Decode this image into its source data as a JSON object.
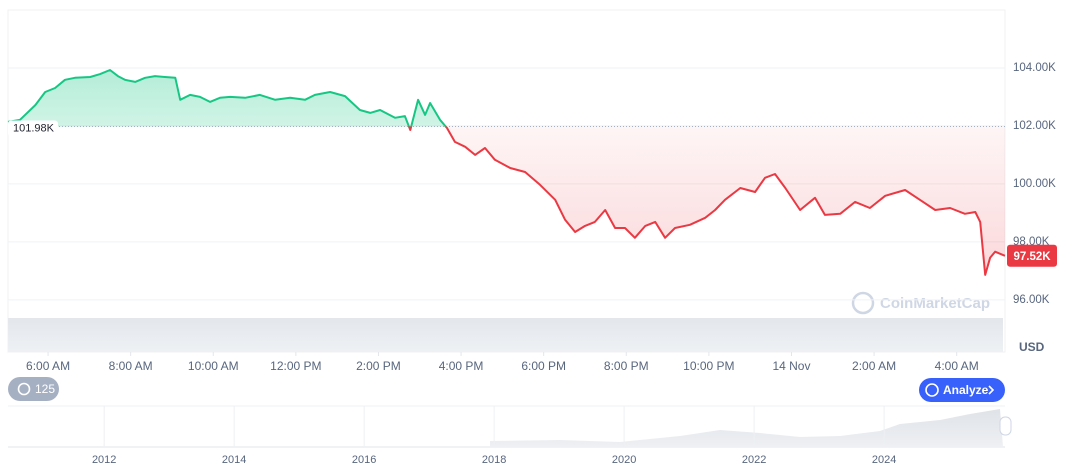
{
  "chart_data": {
    "type": "line",
    "x": [
      5.03,
      5.32,
      5.69,
      5.93,
      6.17,
      6.41,
      6.65,
      7.02,
      7.26,
      7.5,
      7.69,
      7.86,
      8.11,
      8.35,
      8.59,
      8.83,
      9.08,
      9.2,
      9.44,
      9.68,
      9.92,
      10.16,
      10.41,
      10.77,
      11.13,
      11.5,
      11.86,
      12.22,
      12.46,
      12.83,
      13.19,
      13.55,
      13.8,
      14.04,
      14.4,
      14.64,
      14.77,
      14.96,
      15.13,
      15.25,
      15.49,
      15.66,
      15.85,
      16.1,
      16.34,
      16.58,
      16.82,
      17.19,
      17.55,
      17.91,
      18.28,
      18.52,
      18.76,
      19.0,
      19.24,
      19.49,
      19.73,
      19.97,
      20.21,
      20.46,
      20.7,
      20.94,
      21.18,
      21.54,
      21.91,
      22.15,
      22.39,
      22.76,
      23.12,
      23.36,
      23.6,
      23.85,
      24.21,
      24.57,
      24.81,
      25.18,
      25.54,
      25.9,
      26.27,
      26.75,
      27.11,
      27.48,
      27.84,
      28.2,
      28.45,
      28.57,
      28.69,
      28.81,
      28.93,
      29.17
    ],
    "series": [
      {
        "values": [
          102140,
          102210,
          102720,
          103170,
          103310,
          103590,
          103660,
          103690,
          103790,
          103930,
          103720,
          103590,
          103520,
          103660,
          103720,
          103690,
          103660,
          102900,
          103070,
          103000,
          102830,
          102970,
          103000,
          102970,
          103070,
          102900,
          102970,
          102900,
          103070,
          103170,
          103030,
          102550,
          102450,
          102550,
          102280,
          102340,
          101860,
          102900,
          102380,
          102790,
          102210,
          101930,
          101450,
          101280,
          101000,
          101240,
          100830,
          100550,
          100410,
          99970,
          99450,
          98760,
          98340,
          98550,
          98690,
          99100,
          98480,
          98480,
          98140,
          98550,
          98690,
          98140,
          98480,
          98590,
          98830,
          99100,
          99450,
          99860,
          99720,
          100210,
          100340,
          99860,
          99100,
          99520,
          98930,
          98970,
          99380,
          99170,
          99590,
          99790,
          99450,
          99100,
          99170,
          98970,
          99030,
          98690,
          96860,
          97450,
          97660,
          97520
        ],
        "color_above": "#16c784",
        "color_below": "#ea3943"
      }
    ],
    "xlim": [
      5.03,
      29.17
    ],
    "xticks": [
      {
        "value": 6,
        "label": "6:00 AM"
      },
      {
        "value": 8,
        "label": "8:00 AM"
      },
      {
        "value": 10,
        "label": "10:00 AM"
      },
      {
        "value": 12,
        "label": "12:00 PM"
      },
      {
        "value": 14,
        "label": "2:00 PM"
      },
      {
        "value": 16,
        "label": "4:00 PM"
      },
      {
        "value": 18,
        "label": "6:00 PM"
      },
      {
        "value": 20,
        "label": "8:00 PM"
      },
      {
        "value": 22,
        "label": "10:00 PM"
      },
      {
        "value": 24,
        "label": "14 Nov"
      },
      {
        "value": 26,
        "label": "2:00 AM"
      },
      {
        "value": 28,
        "label": "4:00 AM"
      }
    ],
    "ylim": [
      94200,
      106000
    ],
    "yticks": [
      {
        "value": 96000,
        "label": "96.00K"
      },
      {
        "value": 98000,
        "label": "98.00K"
      },
      {
        "value": 100000,
        "label": "100.00K"
      },
      {
        "value": 102000,
        "label": "102.00K"
      },
      {
        "value": 104000,
        "label": "104.00K"
      }
    ],
    "y_unit": "USD",
    "baseline": {
      "value": 101980,
      "label": "101.98K"
    },
    "last": {
      "value": 97520,
      "label": "97.52K"
    },
    "watermark": "CoinMarketCap",
    "grid": true,
    "navigator": {
      "xlim": [
        2010.52,
        2025.86
      ],
      "xticks": [
        2012,
        2014,
        2016,
        2018,
        2020,
        2022,
        2024
      ]
    }
  },
  "controls": {
    "history": "125",
    "analyze": "Analyze"
  }
}
